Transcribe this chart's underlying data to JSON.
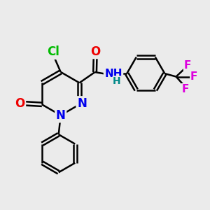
{
  "bg_color": "#ebebeb",
  "bond_color": "#000000",
  "bond_width": 1.8,
  "atom_colors": {
    "N": "#0000ee",
    "O": "#ee0000",
    "Cl": "#00bb00",
    "F": "#dd00dd",
    "H": "#008888"
  },
  "font_size": 11,
  "font_size_small": 9
}
